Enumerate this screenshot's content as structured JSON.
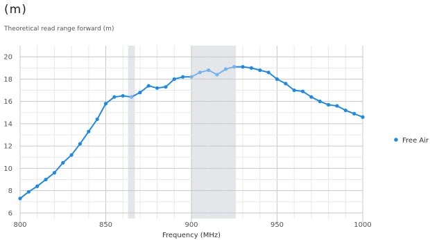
{
  "header": {
    "unit": "(m)",
    "subtitle": "Theoretical read range forward (m)"
  },
  "chart_data": {
    "type": "line",
    "xlabel": "Frequency (MHz)",
    "ylabel": "",
    "xlim": [
      800,
      1000
    ],
    "ylim": [
      5.5,
      21
    ],
    "xticks": [
      800,
      850,
      900,
      950,
      1000
    ],
    "yticks": [
      6,
      8,
      10,
      12,
      14,
      16,
      18,
      20
    ],
    "grid": true,
    "legend_placement": "right",
    "shaded_bands": [
      [
        863,
        867
      ],
      [
        900,
        926
      ]
    ],
    "colors": {
      "line": "#1e88e5",
      "line_in_band": "#76b4ee",
      "band": "#e4e6ea"
    },
    "series": [
      {
        "name": "Free Air",
        "x": [
          800,
          805,
          810,
          815,
          820,
          825,
          830,
          835,
          840,
          845,
          850,
          855,
          860,
          865,
          870,
          875,
          880,
          885,
          890,
          895,
          900,
          905,
          910,
          915,
          920,
          925,
          930,
          935,
          940,
          945,
          950,
          955,
          960,
          965,
          970,
          975,
          980,
          985,
          990,
          995,
          1000
        ],
        "y": [
          7.3,
          7.9,
          8.4,
          9.0,
          9.6,
          10.5,
          11.2,
          12.2,
          13.3,
          14.4,
          15.8,
          16.4,
          16.5,
          16.4,
          16.8,
          17.4,
          17.2,
          17.3,
          18.0,
          18.2,
          18.2,
          18.6,
          18.8,
          18.4,
          18.9,
          19.1,
          19.1,
          19.0,
          18.8,
          18.6,
          18.0,
          17.6,
          17.0,
          16.9,
          16.4,
          16.0,
          15.7,
          15.6,
          15.2,
          14.9,
          14.6
        ]
      }
    ]
  }
}
